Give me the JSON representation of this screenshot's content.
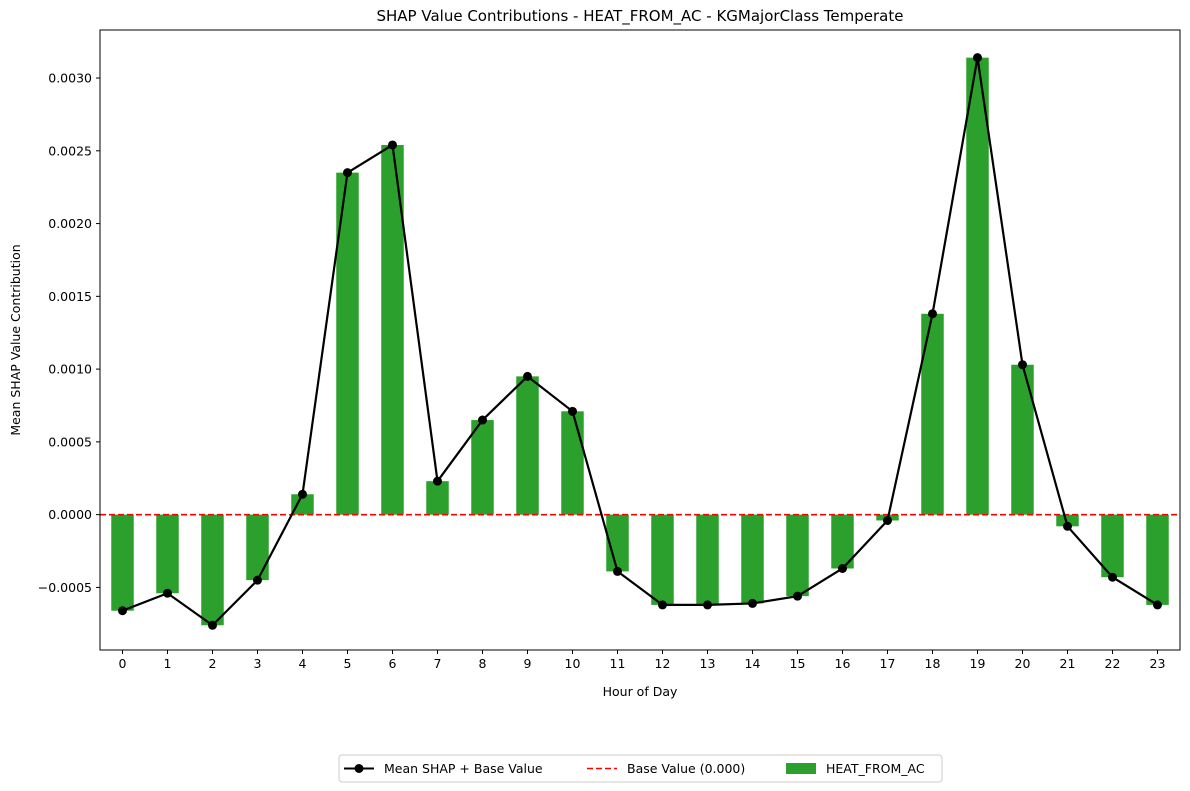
{
  "chart_data": {
    "type": "bar",
    "title": "SHAP Value Contributions - HEAT_FROM_AC - KGMajorClass Temperate",
    "xlabel": "Hour of Day",
    "ylabel": "Mean SHAP Value Contribution",
    "categories": [
      "0",
      "1",
      "2",
      "3",
      "4",
      "5",
      "6",
      "7",
      "8",
      "9",
      "10",
      "11",
      "12",
      "13",
      "14",
      "15",
      "16",
      "17",
      "18",
      "19",
      "20",
      "21",
      "22",
      "23"
    ],
    "ylim": [
      -0.00093,
      0.00333
    ],
    "yticks": [
      -0.0005,
      0.0,
      0.0005,
      0.001,
      0.0015,
      0.002,
      0.0025,
      0.003
    ],
    "ytick_labels": [
      "−0.0005",
      "0.0000",
      "0.0005",
      "0.0010",
      "0.0015",
      "0.0020",
      "0.0025",
      "0.0030"
    ],
    "grid": false,
    "legend_position": "bottom-center",
    "colors": {
      "bar": "#2ca02c",
      "line": "#000000",
      "baseline": "#ff0000"
    },
    "series": [
      {
        "name": "HEAT_FROM_AC",
        "kind": "bar",
        "values": [
          -0.00066,
          -0.00054,
          -0.00076,
          -0.00045,
          0.00014,
          0.00235,
          0.00254,
          0.00023,
          0.00065,
          0.00095,
          0.00071,
          -0.00039,
          -0.00062,
          -0.00062,
          -0.00061,
          -0.00056,
          -0.00037,
          -4e-05,
          0.00138,
          0.00314,
          0.00103,
          -8e-05,
          -0.00043,
          -0.00062
        ]
      },
      {
        "name": "Mean SHAP + Base Value",
        "kind": "line",
        "marker": "circle",
        "values": [
          -0.00066,
          -0.00054,
          -0.00076,
          -0.00045,
          0.00014,
          0.00235,
          0.00254,
          0.00023,
          0.00065,
          0.00095,
          0.00071,
          -0.00039,
          -0.00062,
          -0.00062,
          -0.00061,
          -0.00056,
          -0.00037,
          -4e-05,
          0.00138,
          0.00314,
          0.00103,
          -8e-05,
          -0.00043,
          -0.00062
        ]
      },
      {
        "name": "Base Value (0.000)",
        "kind": "hline",
        "style": "dashed",
        "value": 0.0
      }
    ]
  }
}
